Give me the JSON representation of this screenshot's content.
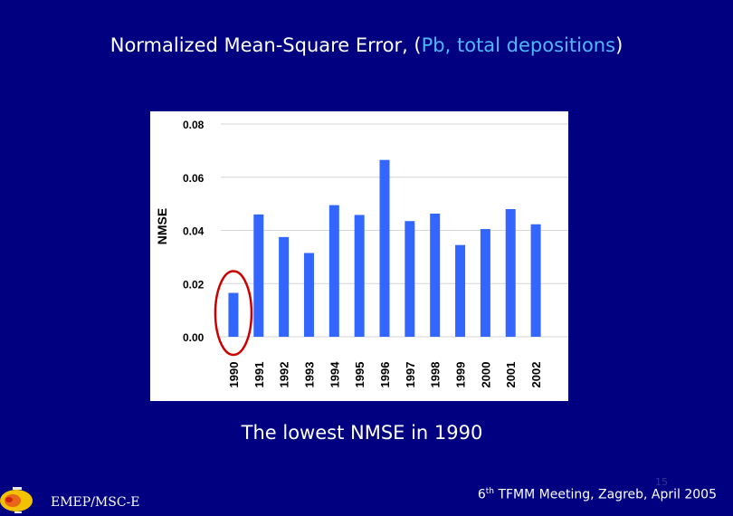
{
  "slide": {
    "title_before": "Normalized Mean-Square Error, (",
    "title_highlight": "Pb, total depositions",
    "title_after": ")",
    "caption": "The lowest NMSE in 1990",
    "footer_org": "EMEP/MSC-E",
    "footer_meeting_num": "6",
    "footer_meeting_sup": "th",
    "footer_meeting_rest": " TFMM Meeting, Zagreb, April 2005",
    "page_number": "15"
  },
  "colors": {
    "background": "#000080",
    "bar": "#3366ff",
    "highlight_circle": "#cc0000",
    "title_highlight": "#4fb8ff"
  },
  "chart_data": {
    "type": "bar",
    "ylabel": "NMSE",
    "categories": [
      "1990",
      "1991",
      "1992",
      "1993",
      "1994",
      "1995",
      "1996",
      "1997",
      "1998",
      "1999",
      "2000",
      "2001",
      "2002"
    ],
    "values": [
      0.0165,
      0.046,
      0.0375,
      0.0315,
      0.0495,
      0.0458,
      0.0665,
      0.0435,
      0.0463,
      0.0345,
      0.0405,
      0.048,
      0.0423
    ],
    "ylim": [
      0,
      0.08
    ],
    "yticks": [
      "0.00",
      "0.02",
      "0.04",
      "0.06",
      "0.08"
    ],
    "grid": true,
    "highlighted_category": "1990"
  }
}
